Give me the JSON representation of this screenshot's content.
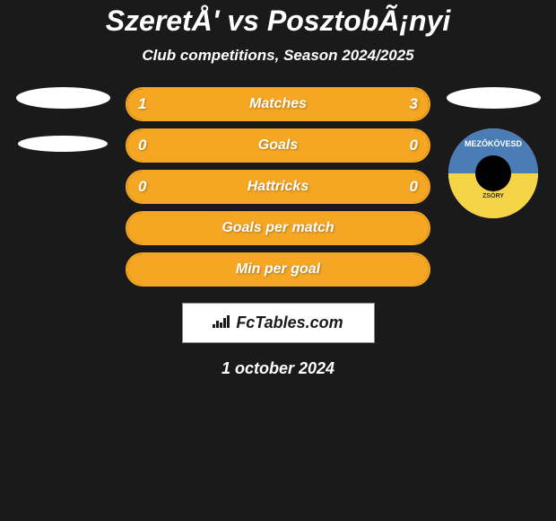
{
  "title": "SzeretÅ' vs PosztobÃ¡nyi",
  "subtitle": "Club competitions, Season 2024/2025",
  "date_text": "1 october 2024",
  "logo_text": "FcTables.com",
  "logo_icon": "📊",
  "colors": {
    "background": "#1a1a1a",
    "bar_fill": "#f5a623",
    "bar_border": "#f5a623",
    "text_white": "#ffffff",
    "logo_box_bg": "#ffffff",
    "logo_box_border": "#888888"
  },
  "stats": [
    {
      "label": "Matches",
      "left_val": "1",
      "right_val": "3",
      "left_fill_pct": 22,
      "right_fill_pct": 78,
      "show_vals": true
    },
    {
      "label": "Goals",
      "left_val": "0",
      "right_val": "0",
      "left_fill_pct": 100,
      "right_fill_pct": 0,
      "show_vals": true,
      "full": true
    },
    {
      "label": "Hattricks",
      "left_val": "0",
      "right_val": "0",
      "left_fill_pct": 100,
      "right_fill_pct": 0,
      "show_vals": true,
      "full": true
    },
    {
      "label": "Goals per match",
      "left_val": "",
      "right_val": "",
      "left_fill_pct": 100,
      "right_fill_pct": 0,
      "show_vals": false,
      "full": true
    },
    {
      "label": "Min per goal",
      "left_val": "",
      "right_val": "",
      "left_fill_pct": 100,
      "right_fill_pct": 0,
      "show_vals": false,
      "full": true
    }
  ],
  "club_badge": {
    "text_top": "MEZŐKÖVESD",
    "text_bottom": "ZSÓRY",
    "blue": "#4a7db5",
    "yellow": "#f5d547"
  }
}
